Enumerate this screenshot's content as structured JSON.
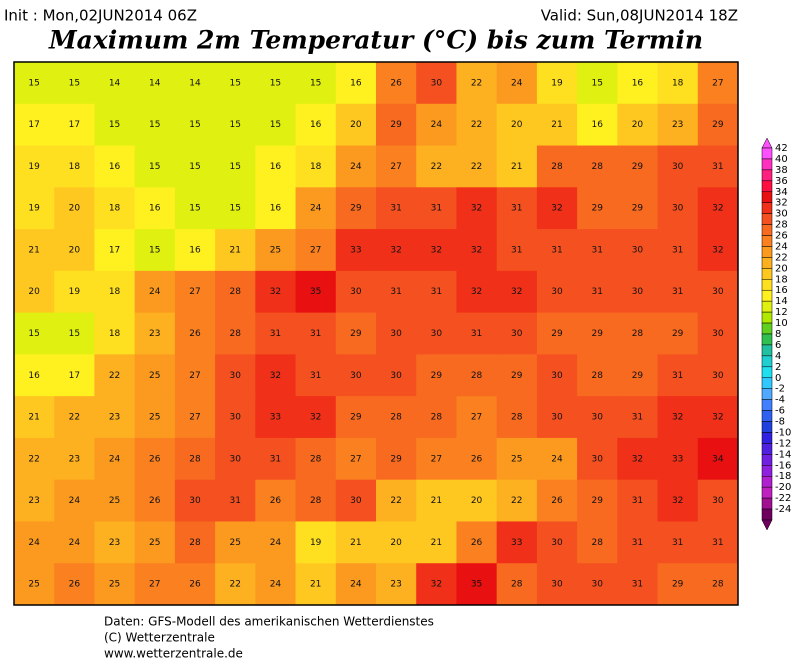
{
  "header": {
    "init": "Init : Mon,02JUN2014 06Z",
    "valid": "Valid: Sun,08JUN2014 18Z",
    "title": "Maximum 2m Temperatur (°C) bis zum Termin"
  },
  "colorbar": {
    "levels": [
      42,
      40,
      38,
      36,
      34,
      32,
      30,
      28,
      26,
      24,
      22,
      20,
      18,
      16,
      14,
      12,
      10,
      8,
      6,
      4,
      2,
      0,
      -2,
      -4,
      -6,
      -8,
      -10,
      -12,
      -14,
      -16,
      -18,
      -20,
      -22,
      -24
    ],
    "colors": [
      "#ff50ff",
      "#ff30c0",
      "#ff2080",
      "#ff1040",
      "#e81010",
      "#f03018",
      "#f45020",
      "#f86a20",
      "#fa8020",
      "#fc9a20",
      "#fdb020",
      "#ffc820",
      "#ffe020",
      "#fff020",
      "#e0f010",
      "#b0e800",
      "#60d020",
      "#30c050",
      "#20c0a0",
      "#20d0d0",
      "#20e0f0",
      "#30c8ff",
      "#50a8ff",
      "#4080ff",
      "#3060f0",
      "#2040e0",
      "#3020e0",
      "#5020e0",
      "#7020e0",
      "#9020e0",
      "#b020d0",
      "#c020c0",
      "#a01090",
      "#700060"
    ]
  },
  "map": {
    "values": [
      [
        15,
        15,
        14,
        14,
        14,
        15,
        15,
        15,
        16,
        26,
        30,
        22,
        24,
        19,
        15,
        16,
        18,
        27
      ],
      [
        17,
        17,
        15,
        15,
        15,
        15,
        15,
        16,
        20,
        29,
        24,
        22,
        20,
        21,
        16,
        20,
        23,
        29
      ],
      [
        19,
        18,
        16,
        15,
        15,
        15,
        16,
        18,
        24,
        27,
        22,
        22,
        21,
        28,
        28,
        29,
        30,
        31
      ],
      [
        19,
        20,
        18,
        16,
        15,
        15,
        16,
        24,
        29,
        31,
        31,
        32,
        31,
        32,
        29,
        29,
        30,
        32
      ],
      [
        21,
        20,
        17,
        15,
        16,
        21,
        25,
        27,
        33,
        32,
        32,
        32,
        31,
        31,
        31,
        30,
        31,
        32
      ],
      [
        20,
        19,
        18,
        24,
        27,
        28,
        32,
        35,
        30,
        31,
        31,
        32,
        32,
        30,
        31,
        30,
        31,
        30
      ],
      [
        15,
        15,
        18,
        23,
        26,
        28,
        31,
        31,
        29,
        30,
        30,
        31,
        30,
        29,
        29,
        28,
        29,
        30
      ],
      [
        16,
        17,
        22,
        25,
        27,
        30,
        32,
        31,
        30,
        30,
        29,
        28,
        29,
        30,
        28,
        29,
        31,
        30
      ],
      [
        21,
        22,
        23,
        25,
        27,
        30,
        33,
        32,
        29,
        28,
        28,
        27,
        28,
        30,
        30,
        31,
        32,
        32
      ],
      [
        22,
        23,
        24,
        26,
        28,
        30,
        31,
        28,
        27,
        29,
        27,
        26,
        25,
        24,
        30,
        32,
        33,
        34
      ],
      [
        23,
        24,
        25,
        26,
        30,
        31,
        26,
        28,
        30,
        22,
        21,
        20,
        22,
        26,
        29,
        31,
        32,
        30
      ],
      [
        24,
        24,
        23,
        25,
        28,
        25,
        24,
        19,
        21,
        20,
        21,
        26,
        33,
        30,
        28,
        31,
        31,
        31
      ],
      [
        25,
        26,
        25,
        27,
        26,
        22,
        24,
        21,
        24,
        23,
        32,
        35,
        28,
        30,
        30,
        31,
        29,
        28
      ]
    ]
  },
  "footer": {
    "lines": [
      "Daten: GFS-Modell des amerikanischen Wetterdienstes",
      "(C) Wetterzentrale",
      "www.wetterzentrale.de"
    ]
  }
}
